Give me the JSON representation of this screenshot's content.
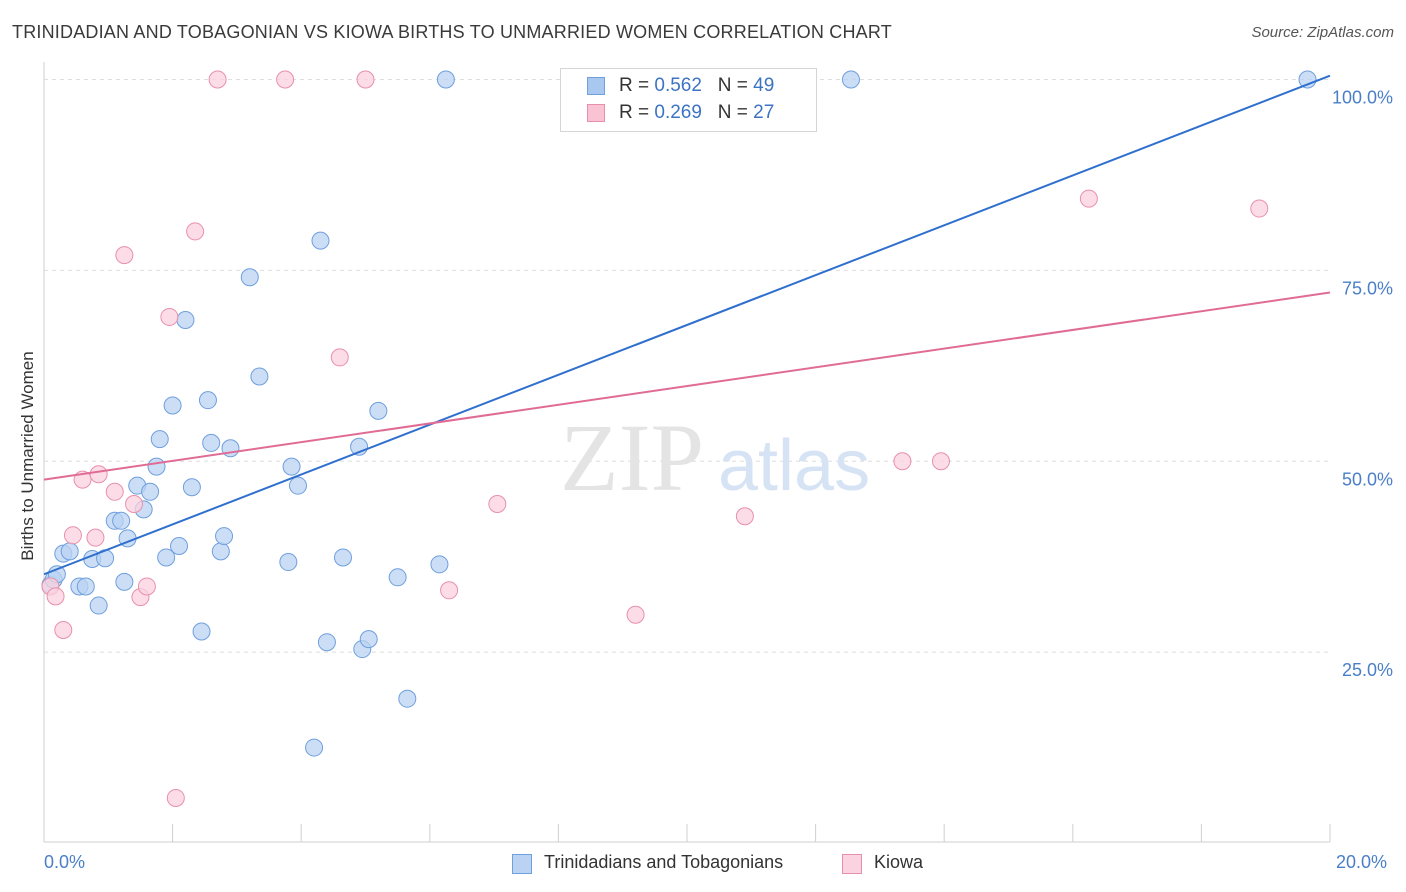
{
  "title": "TRINIDADIAN AND TOBAGONIAN VS KIOWA BIRTHS TO UNMARRIED WOMEN CORRELATION CHART",
  "source": "Source: ZipAtlas.com",
  "watermark": {
    "zip": "ZIP",
    "atlas": "atlas"
  },
  "legend": {
    "r_label": "R =",
    "n_label": "N =",
    "rows": [
      {
        "r": "0.562",
        "n": "49",
        "color": "#a9c8f0",
        "border": "#6f9fdd"
      },
      {
        "r": "0.269",
        "n": "27",
        "color": "#f9c3d3",
        "border": "#e890ab"
      }
    ]
  },
  "bottom_legend": [
    "Trinidadians and Tobagonians",
    "Kiowa"
  ],
  "chart_data": {
    "type": "scatter",
    "xlabel": "",
    "ylabel": "Births to Unmarried Women",
    "x_tick_labels": [
      "0.0%",
      "20.0%"
    ],
    "y_tick_labels": [
      "100.0%",
      "75.0%",
      "50.0%",
      "25.0%"
    ],
    "y_ticks": [
      100,
      75,
      50,
      25
    ],
    "xlim": [
      0,
      20
    ],
    "ylim": [
      0,
      102
    ],
    "grid": true,
    "legend_position": "top-center",
    "series": [
      {
        "name": "Trinidadians and Tobagonians",
        "color": "#6f9fdd",
        "fill": "#bad3f3",
        "trend": {
          "x": [
            0,
            20
          ],
          "y": [
            35.2,
            100.5
          ],
          "color": "#2f6fce"
        },
        "points": [
          [
            0.1,
            33.8
          ],
          [
            0.15,
            34.5
          ],
          [
            0.2,
            35.2
          ],
          [
            0.3,
            37.9
          ],
          [
            0.4,
            38.2
          ],
          [
            0.55,
            33.6
          ],
          [
            0.65,
            33.6
          ],
          [
            0.75,
            37.2
          ],
          [
            0.85,
            31.1
          ],
          [
            0.95,
            37.3
          ],
          [
            1.1,
            42.2
          ],
          [
            1.2,
            42.2
          ],
          [
            1.25,
            34.2
          ],
          [
            1.3,
            39.9
          ],
          [
            1.45,
            46.8
          ],
          [
            1.55,
            43.7
          ],
          [
            1.65,
            46.0
          ],
          [
            1.75,
            49.3
          ],
          [
            1.8,
            52.9
          ],
          [
            1.9,
            37.4
          ],
          [
            2.0,
            57.3
          ],
          [
            2.1,
            38.9
          ],
          [
            2.2,
            68.5
          ],
          [
            2.3,
            46.6
          ],
          [
            2.45,
            27.7
          ],
          [
            2.55,
            58.0
          ],
          [
            2.6,
            52.4
          ],
          [
            2.75,
            38.2
          ],
          [
            2.8,
            40.2
          ],
          [
            2.9,
            51.7
          ],
          [
            3.2,
            74.1
          ],
          [
            3.35,
            61.1
          ],
          [
            3.8,
            36.8
          ],
          [
            3.85,
            49.3
          ],
          [
            3.95,
            46.8
          ],
          [
            4.2,
            12.5
          ],
          [
            4.3,
            78.9
          ],
          [
            4.4,
            26.3
          ],
          [
            4.65,
            37.4
          ],
          [
            4.9,
            51.9
          ],
          [
            4.95,
            25.4
          ],
          [
            5.05,
            26.7
          ],
          [
            5.2,
            56.6
          ],
          [
            5.5,
            34.8
          ],
          [
            5.65,
            18.9
          ],
          [
            6.15,
            36.5
          ],
          [
            6.25,
            100.0
          ],
          [
            12.55,
            100.0
          ],
          [
            19.65,
            100.0
          ]
        ]
      },
      {
        "name": "Kiowa",
        "color": "#e890ab",
        "fill": "#fbd2df",
        "trend": {
          "x": [
            0,
            20
          ],
          "y": [
            47.6,
            72.1
          ],
          "color": "#e06c96"
        },
        "points": [
          [
            0.1,
            33.6
          ],
          [
            0.18,
            32.3
          ],
          [
            0.3,
            27.9
          ],
          [
            0.45,
            40.3
          ],
          [
            0.6,
            47.6
          ],
          [
            0.8,
            40.0
          ],
          [
            0.85,
            48.3
          ],
          [
            1.1,
            46.0
          ],
          [
            1.25,
            77.0
          ],
          [
            1.4,
            44.4
          ],
          [
            1.5,
            32.2
          ],
          [
            1.6,
            33.6
          ],
          [
            1.95,
            68.9
          ],
          [
            2.05,
            5.9
          ],
          [
            2.35,
            80.1
          ],
          [
            2.7,
            100.0
          ],
          [
            3.75,
            100.0
          ],
          [
            4.6,
            63.6
          ],
          [
            5.0,
            100.0
          ],
          [
            6.3,
            33.1
          ],
          [
            7.05,
            44.4
          ],
          [
            9.2,
            29.9
          ],
          [
            10.9,
            42.8
          ],
          [
            13.35,
            50.0
          ],
          [
            13.95,
            50.0
          ],
          [
            16.25,
            84.4
          ],
          [
            18.9,
            83.1
          ]
        ]
      }
    ]
  }
}
